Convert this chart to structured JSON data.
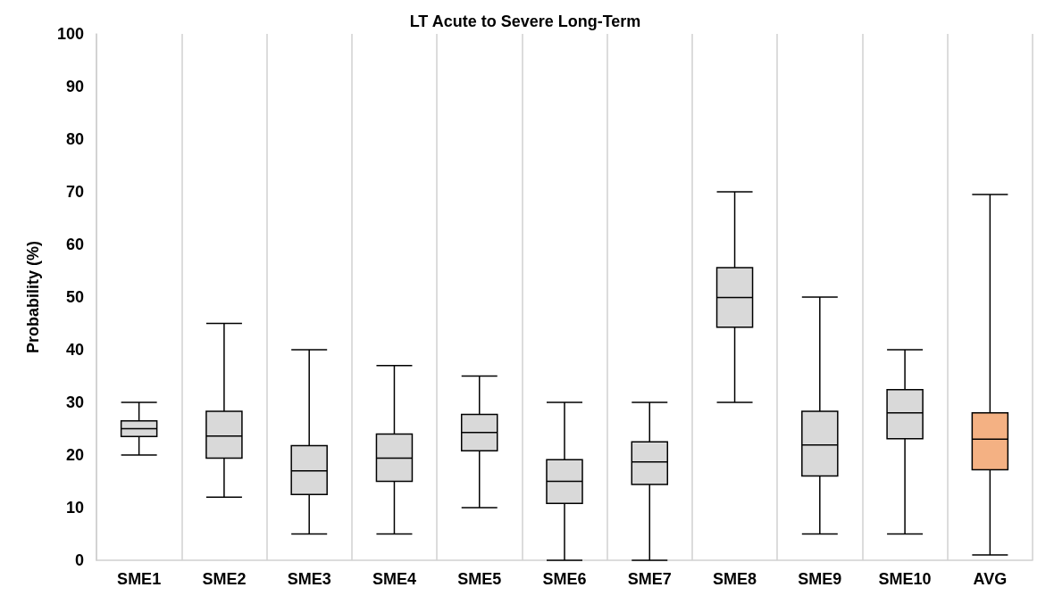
{
  "chart_data": {
    "type": "box",
    "title": "LT Acute to Severe Long-Term",
    "ylabel": "Probability (%)",
    "categories": [
      "SME1",
      "SME2",
      "SME3",
      "SME4",
      "SME5",
      "SME6",
      "SME7",
      "SME8",
      "SME9",
      "SME10",
      "AVG"
    ],
    "boxes": [
      {
        "low": 20,
        "q1": 23.5,
        "median": 25,
        "q3": 26.5,
        "high": 30
      },
      {
        "low": 12,
        "q1": 19.4,
        "median": 23.6,
        "q3": 28.3,
        "high": 45
      },
      {
        "low": 5,
        "q1": 12.5,
        "median": 17,
        "q3": 21.8,
        "high": 40
      },
      {
        "low": 5,
        "q1": 15,
        "median": 19.4,
        "q3": 24,
        "high": 37
      },
      {
        "low": 10,
        "q1": 20.8,
        "median": 24.3,
        "q3": 27.7,
        "high": 35
      },
      {
        "low": 0,
        "q1": 10.8,
        "median": 15,
        "q3": 19.1,
        "high": 30
      },
      {
        "low": 0,
        "q1": 14.4,
        "median": 18.7,
        "q3": 22.5,
        "high": 30
      },
      {
        "low": 30,
        "q1": 44.3,
        "median": 49.9,
        "q3": 55.6,
        "high": 70
      },
      {
        "low": 5,
        "q1": 16,
        "median": 21.9,
        "q3": 28.3,
        "high": 50
      },
      {
        "low": 5,
        "q1": 23.1,
        "median": 28,
        "q3": 32.4,
        "high": 40
      },
      {
        "low": 1,
        "q1": 17.2,
        "median": 23,
        "q3": 28,
        "high": 69.5
      }
    ],
    "colors": [
      "#d9d9d9",
      "#d9d9d9",
      "#d9d9d9",
      "#d9d9d9",
      "#d9d9d9",
      "#d9d9d9",
      "#d9d9d9",
      "#d9d9d9",
      "#d9d9d9",
      "#d9d9d9",
      "#f4b183"
    ],
    "ylim": [
      0,
      100
    ],
    "yticks": [
      0,
      10,
      20,
      30,
      40,
      50,
      60,
      70,
      80,
      90,
      100
    ],
    "grid": "x"
  }
}
